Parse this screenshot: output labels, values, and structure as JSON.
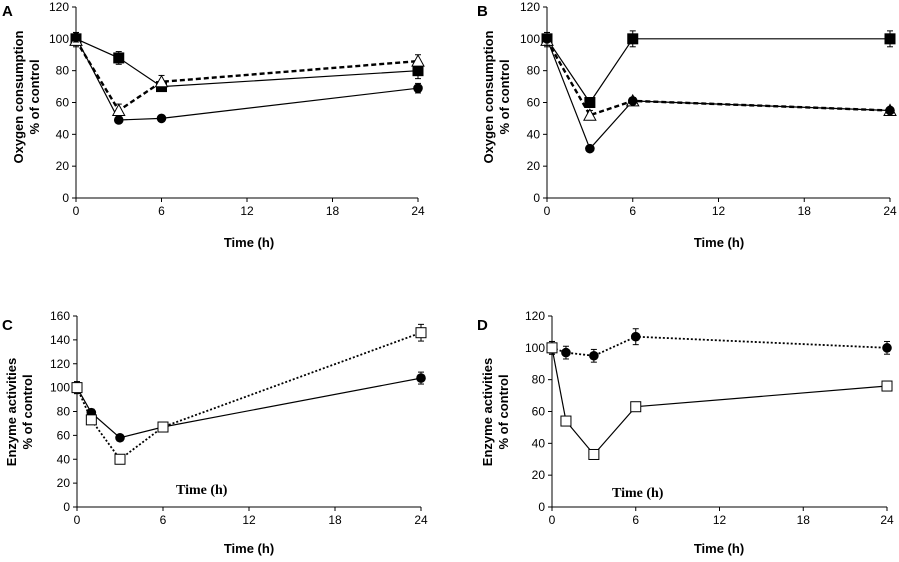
{
  "chart_data": [
    {
      "panel": "A",
      "type": "line",
      "xlabel": "Time (h)",
      "ylabel": [
        "Oxygen consumption",
        "% of control"
      ],
      "xticks": [
        0,
        6,
        12,
        18,
        24
      ],
      "yticks": [
        0,
        20,
        40,
        60,
        80,
        100,
        120
      ],
      "xlim": [
        0,
        24
      ],
      "ylim": [
        0,
        120
      ],
      "series": [
        {
          "name": "filled squares",
          "marker": "square-filled",
          "line": "solid",
          "x": [
            0,
            3,
            6,
            24
          ],
          "y": [
            100,
            88,
            70,
            80
          ],
          "err": [
            4,
            4,
            3,
            5
          ]
        },
        {
          "name": "open triangles",
          "marker": "triangle-open",
          "line": "dashed",
          "x": [
            0,
            3,
            6,
            24
          ],
          "y": [
            99,
            55,
            73,
            86
          ],
          "err": [
            4,
            4,
            4,
            4
          ]
        },
        {
          "name": "filled circles",
          "marker": "circle-filled",
          "line": "solid",
          "x": [
            0,
            3,
            6,
            24
          ],
          "y": [
            101,
            49,
            50,
            69
          ],
          "err": [
            3,
            2,
            2,
            3
          ]
        }
      ]
    },
    {
      "panel": "B",
      "type": "line",
      "xlabel": "Time (h)",
      "ylabel": [
        "Oxygen consumption",
        "% of control"
      ],
      "xticks": [
        0,
        6,
        12,
        18,
        24
      ],
      "yticks": [
        0,
        20,
        40,
        60,
        80,
        100,
        120
      ],
      "xlim": [
        0,
        24
      ],
      "ylim": [
        0,
        120
      ],
      "series": [
        {
          "name": "filled squares",
          "marker": "square-filled",
          "line": "solid",
          "x": [
            0,
            3,
            6,
            24
          ],
          "y": [
            100,
            60,
            100,
            100
          ],
          "err": [
            4,
            3,
            5,
            5
          ]
        },
        {
          "name": "open triangles",
          "marker": "triangle-open",
          "line": "dashed",
          "x": [
            0,
            3,
            6,
            24
          ],
          "y": [
            99,
            52,
            61,
            55
          ],
          "err": [
            4,
            3,
            2,
            2
          ]
        },
        {
          "name": "filled circles",
          "marker": "circle-filled",
          "line": "solid",
          "x": [
            0,
            3,
            6,
            24
          ],
          "y": [
            100,
            31,
            61,
            55
          ],
          "err": [
            4,
            0,
            2,
            2
          ]
        }
      ]
    },
    {
      "panel": "C",
      "type": "line",
      "xlabel": "Time (h)",
      "ylabel": [
        "Enzyme activities",
        "% of control"
      ],
      "annotation": "Time (h)",
      "xticks": [
        0,
        6,
        12,
        18,
        24
      ],
      "yticks": [
        0,
        20,
        40,
        60,
        80,
        100,
        120,
        140,
        160
      ],
      "xlim": [
        0,
        24
      ],
      "ylim": [
        0,
        160
      ],
      "series": [
        {
          "name": "filled circles",
          "marker": "circle-filled",
          "line": "solid",
          "x": [
            0,
            1,
            3,
            6,
            24
          ],
          "y": [
            100,
            79,
            58,
            67,
            108
          ],
          "err": [
            5,
            3,
            2,
            3,
            5
          ]
        },
        {
          "name": "open squares",
          "marker": "square-open",
          "line": "dotted",
          "x": [
            0,
            1,
            3,
            6,
            24
          ],
          "y": [
            100,
            73,
            40,
            67,
            146
          ],
          "err": [
            5,
            3,
            2,
            3,
            7
          ]
        }
      ]
    },
    {
      "panel": "D",
      "type": "line",
      "xlabel": "Time (h)",
      "ylabel": [
        "Enzyme activities",
        "% of control"
      ],
      "annotation": "Time (h)",
      "xticks": [
        0,
        6,
        12,
        18,
        24
      ],
      "yticks": [
        0,
        20,
        40,
        60,
        80,
        100,
        120
      ],
      "xlim": [
        0,
        24
      ],
      "ylim": [
        0,
        120
      ],
      "series": [
        {
          "name": "filled circles",
          "marker": "circle-filled",
          "line": "dotted",
          "x": [
            0,
            1,
            3,
            6,
            24
          ],
          "y": [
            100,
            97,
            95,
            107,
            100
          ],
          "err": [
            4,
            4,
            4,
            5,
            4
          ]
        },
        {
          "name": "open squares",
          "marker": "square-open",
          "line": "solid",
          "x": [
            0,
            1,
            3,
            6,
            24
          ],
          "y": [
            100,
            54,
            33,
            63,
            76
          ],
          "err": [
            4,
            2,
            1,
            2,
            3
          ]
        }
      ]
    }
  ]
}
